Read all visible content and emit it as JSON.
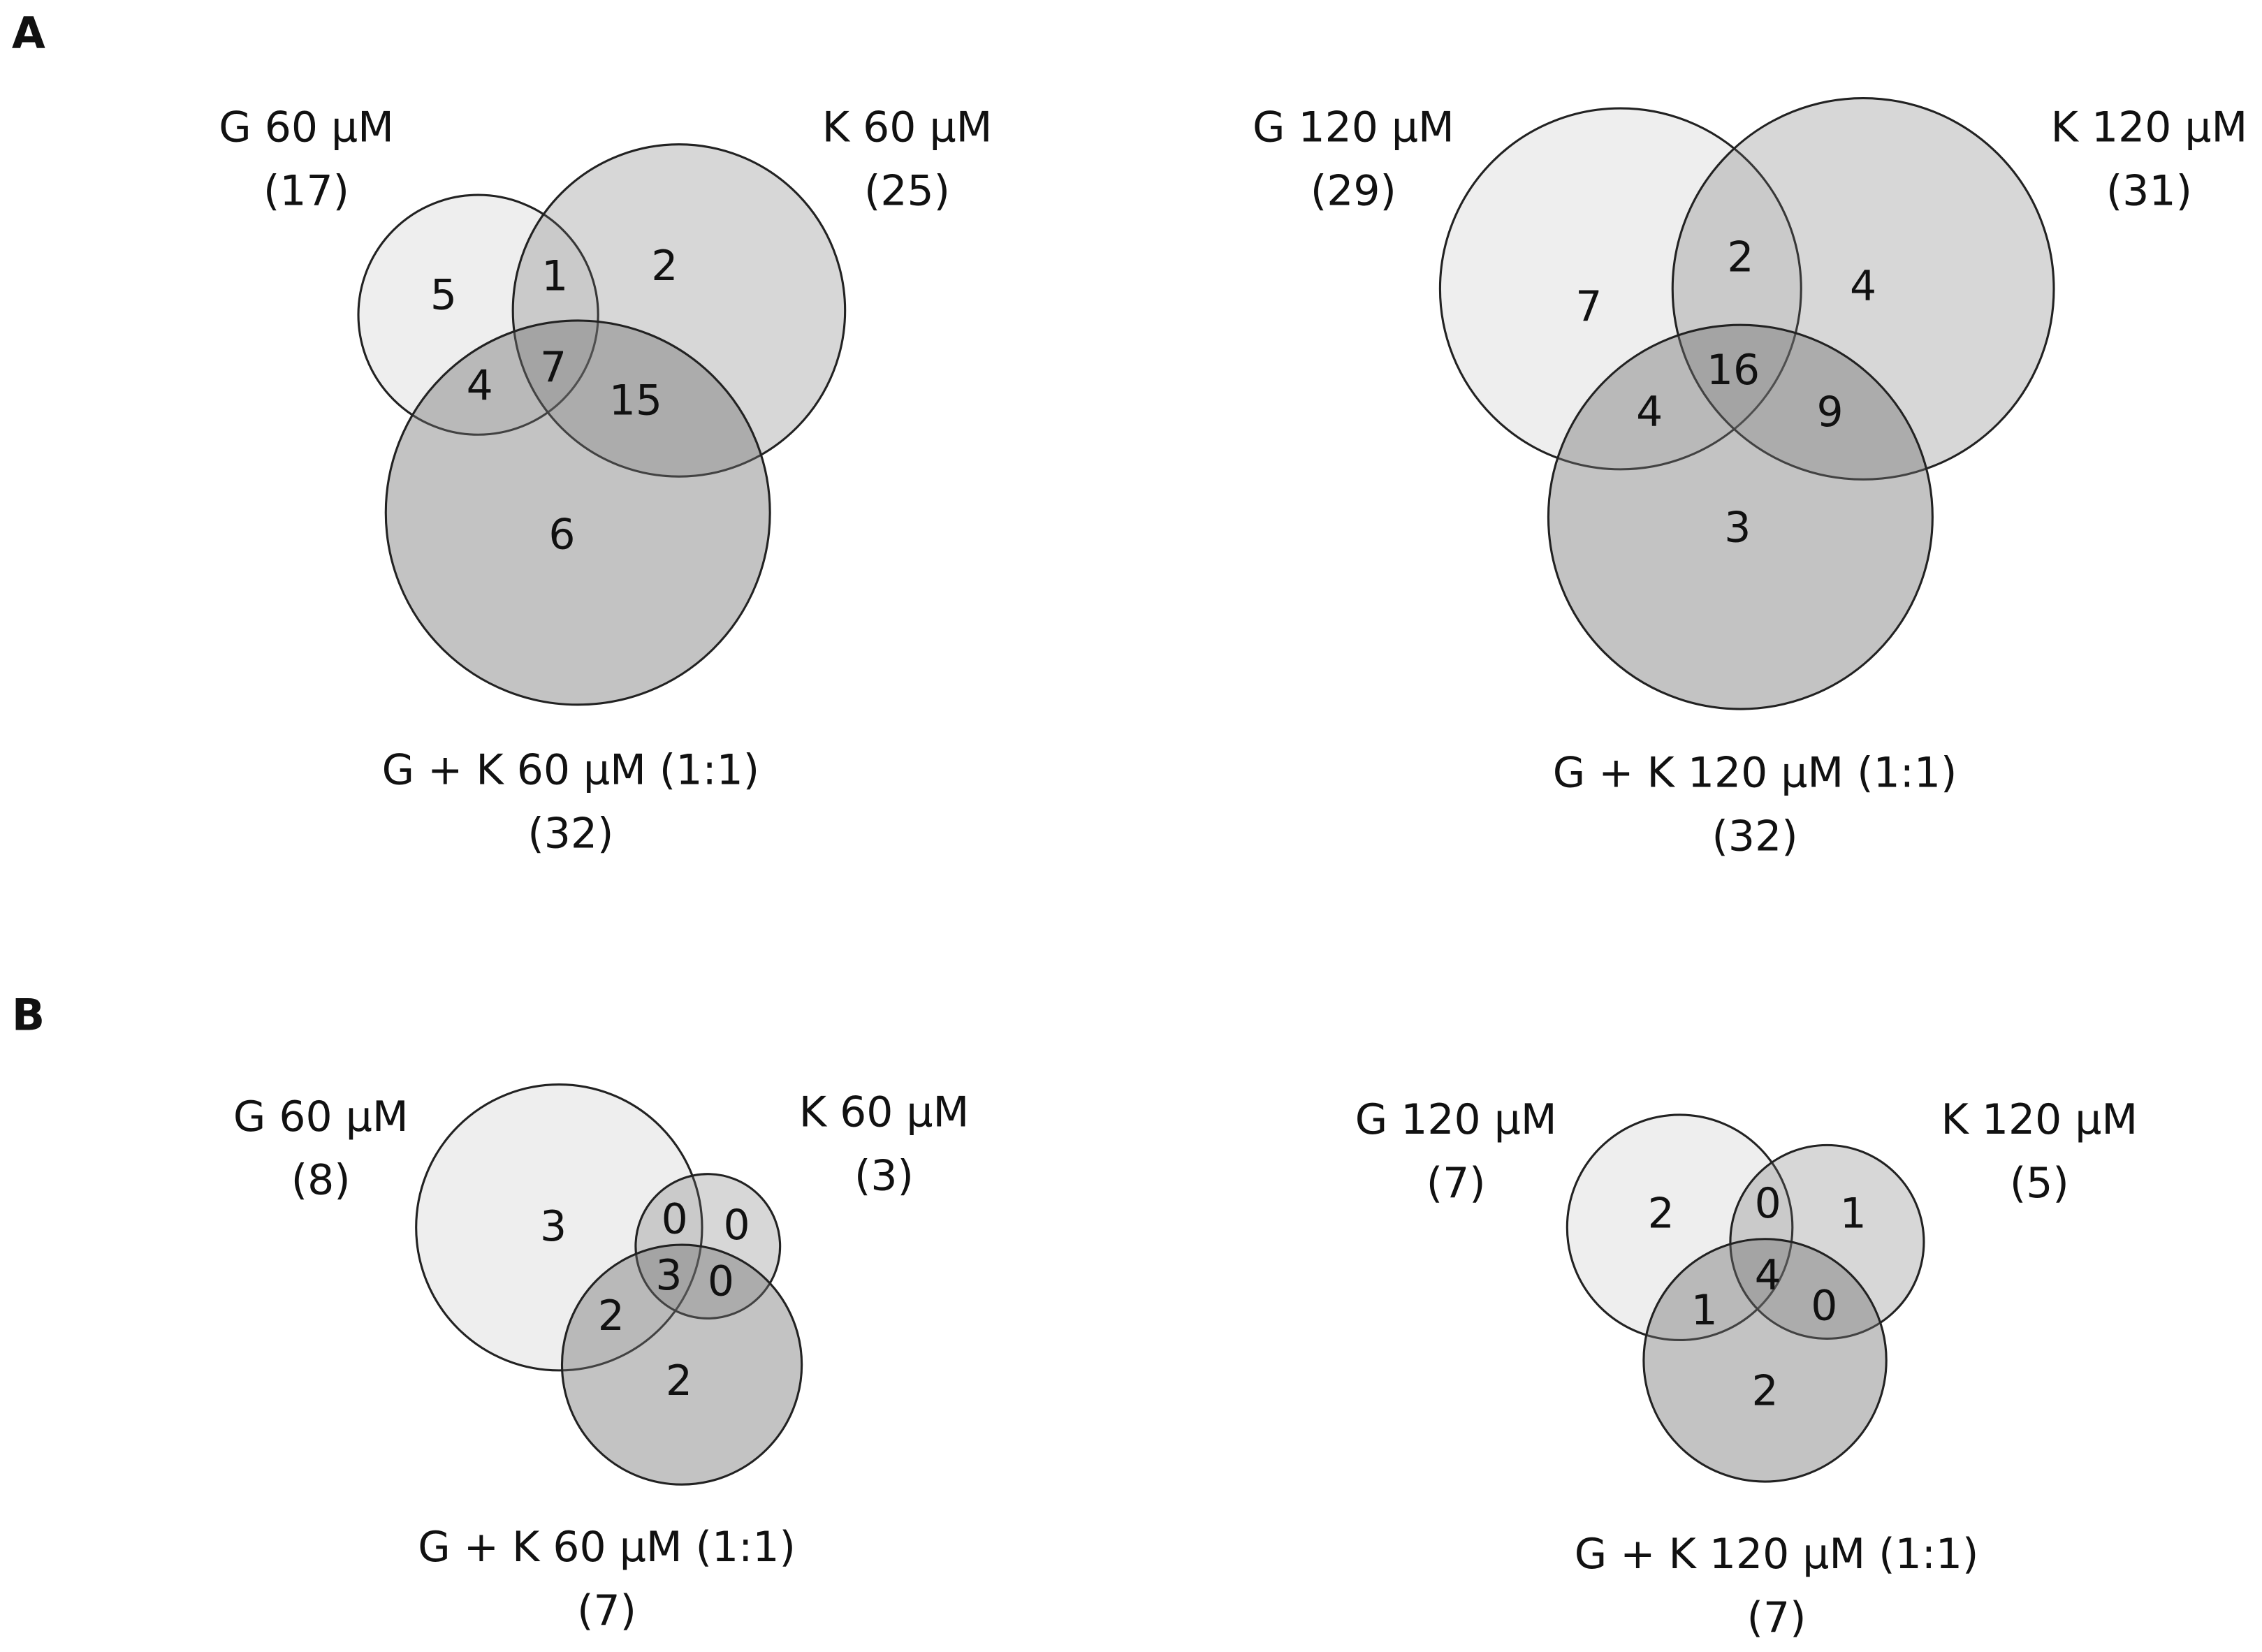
{
  "panel_labels": [
    "A",
    "B"
  ],
  "chart_data": [
    {
      "type": "venn",
      "sets": [
        {
          "name": "G 60 μM",
          "total": 17,
          "total_label": "(17)",
          "color": "#707070"
        },
        {
          "name": "K 60 μM",
          "total": 25,
          "total_label": "(25)",
          "color": "#707070"
        },
        {
          "name": "G + K 60 μM (1:1)",
          "total": 32,
          "total_label": "(32)",
          "color": "#707070"
        }
      ],
      "values": [
        5,
        2,
        6,
        1,
        4,
        15,
        7
      ]
    },
    {
      "type": "venn",
      "sets": [
        {
          "name": "G 120 μM",
          "total": 29,
          "total_label": "(29)",
          "color": "#707070"
        },
        {
          "name": "K 120 μM",
          "total": 31,
          "total_label": "(31)",
          "color": "#707070"
        },
        {
          "name": "G + K 120 μM (1:1)",
          "total": 32,
          "total_label": "(32)",
          "color": "#707070"
        }
      ],
      "values": [
        7,
        4,
        3,
        2,
        4,
        9,
        16
      ]
    },
    {
      "type": "venn",
      "sets": [
        {
          "name": "G 60 μM",
          "total": 8,
          "total_label": "(8)",
          "color": "#707070"
        },
        {
          "name": "K 60 μM",
          "total": 3,
          "total_label": "(3)",
          "color": "#707070"
        },
        {
          "name": "G + K 60 μM (1:1)",
          "total": 7,
          "total_label": "(7)",
          "color": "#707070"
        }
      ],
      "values": [
        3,
        0,
        2,
        0,
        2,
        0,
        3
      ]
    },
    {
      "type": "venn",
      "sets": [
        {
          "name": "G 120 μM",
          "total": 7,
          "total_label": "(7)",
          "color": "#707070"
        },
        {
          "name": "K 120 μM",
          "total": 5,
          "total_label": "(5)",
          "color": "#707070"
        },
        {
          "name": "G + K 120 μM (1:1)",
          "total": 7,
          "total_label": "(7)",
          "color": "#707070"
        }
      ],
      "values": [
        2,
        1,
        2,
        0,
        1,
        0,
        4
      ]
    }
  ]
}
